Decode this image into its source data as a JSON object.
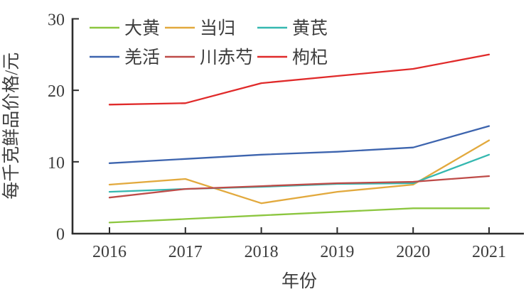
{
  "figure": {
    "background": "#ffffff",
    "axis_color": "#2d2d2d",
    "text_color": "#3d3d3d"
  },
  "chart_data": {
    "type": "line",
    "title": "",
    "xlabel": "年份",
    "ylabel": "每千克鲜品价格/元",
    "x": [
      2016,
      2017,
      2018,
      2019,
      2020,
      2021
    ],
    "xtick_labels": [
      "2016",
      "2017",
      "2018",
      "2019",
      "2020",
      "2021"
    ],
    "yticks": [
      0,
      10,
      20,
      30
    ],
    "ytick_labels": [
      "0",
      "10",
      "20",
      "30"
    ],
    "ylim": [
      0,
      30
    ],
    "grid": false,
    "legend": {
      "position": "inside-top-left",
      "rows": 2,
      "columns": 3
    },
    "series": [
      {
        "name": "大黄",
        "key": "dahuang",
        "color": "#8cc63f",
        "values": [
          1.5,
          2.0,
          2.5,
          3.0,
          3.5,
          3.5
        ]
      },
      {
        "name": "当归",
        "key": "danggui",
        "color": "#e2a93d",
        "values": [
          6.8,
          7.6,
          4.2,
          5.8,
          6.8,
          13.0
        ]
      },
      {
        "name": "黄芪",
        "key": "huangqi",
        "color": "#35b8b0",
        "values": [
          5.8,
          6.2,
          6.5,
          6.9,
          7.0,
          11.0
        ]
      },
      {
        "name": "羌活",
        "key": "qianghuo",
        "color": "#3d64ae",
        "values": [
          9.8,
          10.4,
          11.0,
          11.4,
          12.0,
          15.0
        ]
      },
      {
        "name": "川赤芍",
        "key": "chuanchishao",
        "color": "#be4b48",
        "values": [
          5.0,
          6.2,
          6.6,
          7.0,
          7.2,
          8.0
        ]
      },
      {
        "name": "枸杞",
        "key": "gouqi",
        "color": "#e02a2a",
        "values": [
          18.0,
          18.2,
          21.0,
          22.0,
          23.0,
          25.0
        ]
      }
    ]
  }
}
